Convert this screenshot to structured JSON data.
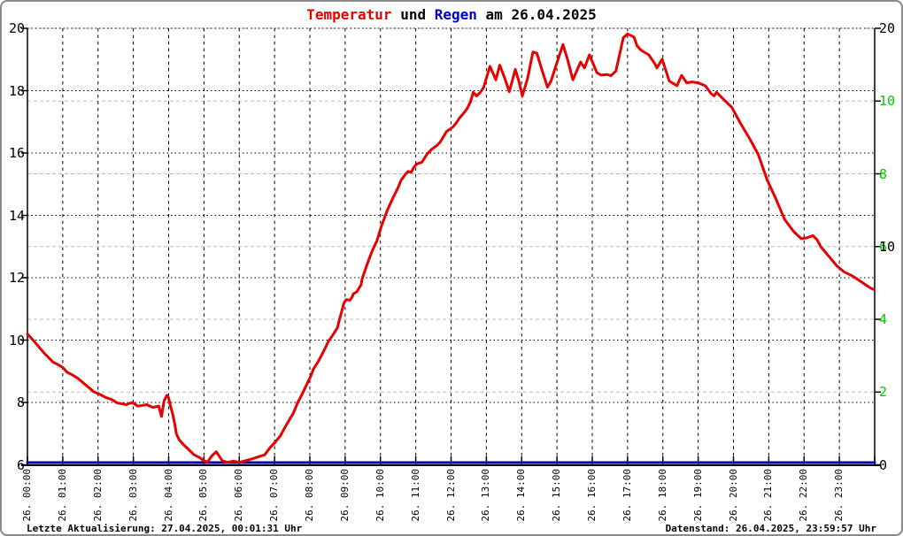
{
  "title": {
    "segments": [
      {
        "text": "Temperatur",
        "color": "#e60000"
      },
      {
        "text": " und ",
        "color": "#000000"
      },
      {
        "text": "Regen",
        "color": "#0000cc"
      },
      {
        "text": " am 26.04.2025",
        "color": "#000000"
      }
    ]
  },
  "footer": {
    "left": "Letzte Aktualisierung: 27.04.2025, 00:01:31 Uhr",
    "right": "Datenstand: 26.04.2025, 23:59:57 Uhr"
  },
  "colors": {
    "temperature_line": "#e60000",
    "rain_line": "#0000aa",
    "right_axis_green": "#00cc00",
    "grid_temp_dotted": "#000000",
    "grid_green_dashed": "#bbbbbb",
    "grid_vertical_dashed": "#000000",
    "axis": "#000000",
    "frame_border": "#8a8a8a"
  },
  "chart_data": {
    "type": "line",
    "title": "Temperatur und Regen am 26.04.2025",
    "x_axis": {
      "labels": [
        "26. 00:00",
        "26. 01:00",
        "26. 02:00",
        "26. 03:00",
        "26. 04:00",
        "26. 05:00",
        "26. 06:00",
        "26. 07:00",
        "26. 08:00",
        "26. 09:00",
        "26. 10:00",
        "26. 11:00",
        "26. 12:00",
        "26. 13:00",
        "26. 14:00",
        "26. 15:00",
        "26. 16:00",
        "26. 17:00",
        "26. 18:00",
        "26. 19:00",
        "26. 20:00",
        "26. 21:00",
        "26. 22:00",
        "26. 23:00"
      ],
      "hours": [
        0,
        1,
        2,
        3,
        4,
        5,
        6,
        7,
        8,
        9,
        10,
        11,
        12,
        13,
        14,
        15,
        16,
        17,
        18,
        19,
        20,
        21,
        22,
        23
      ],
      "range": [
        0,
        24
      ],
      "grid": "dashed"
    },
    "y_axis_left": {
      "name": "Temperatur",
      "ticks": [
        20,
        18,
        16,
        14,
        12,
        10,
        8,
        6
      ],
      "range": [
        6,
        20
      ],
      "grid": "dotted"
    },
    "y_axis_right_green": {
      "ticks": [
        10,
        8,
        6,
        4,
        2
      ],
      "range": [
        0,
        12
      ],
      "grid": "dashed-gray"
    },
    "y_axis_right_black": {
      "ticks": [
        20,
        10,
        0
      ],
      "range": [
        0,
        20
      ],
      "grid": "none"
    },
    "series": [
      {
        "name": "Temperatur",
        "axis": "left",
        "color": "#e60000",
        "points": [
          [
            0.0,
            10.2
          ],
          [
            0.22,
            9.92
          ],
          [
            0.47,
            9.59
          ],
          [
            0.72,
            9.3
          ],
          [
            0.87,
            9.21
          ],
          [
            1.0,
            9.12
          ],
          [
            1.12,
            8.97
          ],
          [
            1.28,
            8.88
          ],
          [
            1.42,
            8.78
          ],
          [
            1.62,
            8.59
          ],
          [
            1.87,
            8.35
          ],
          [
            2.05,
            8.26
          ],
          [
            2.22,
            8.16
          ],
          [
            2.38,
            8.1
          ],
          [
            2.55,
            7.98
          ],
          [
            2.8,
            7.93
          ],
          [
            2.97,
            8.0
          ],
          [
            3.13,
            7.88
          ],
          [
            3.38,
            7.93
          ],
          [
            3.55,
            7.84
          ],
          [
            3.72,
            7.88
          ],
          [
            3.8,
            7.55
          ],
          [
            3.87,
            8.05
          ],
          [
            3.95,
            8.23
          ],
          [
            4.0,
            8.15
          ],
          [
            4.03,
            7.98
          ],
          [
            4.12,
            7.6
          ],
          [
            4.17,
            7.32
          ],
          [
            4.22,
            6.99
          ],
          [
            4.3,
            6.8
          ],
          [
            4.42,
            6.65
          ],
          [
            4.55,
            6.51
          ],
          [
            4.72,
            6.32
          ],
          [
            4.88,
            6.23
          ],
          [
            5.0,
            6.13
          ],
          [
            5.1,
            6.09
          ],
          [
            5.22,
            6.28
          ],
          [
            5.35,
            6.42
          ],
          [
            5.52,
            6.13
          ],
          [
            5.67,
            6.08
          ],
          [
            5.83,
            6.12
          ],
          [
            6.0,
            6.08
          ],
          [
            6.17,
            6.13
          ],
          [
            6.33,
            6.18
          ],
          [
            6.72,
            6.32
          ],
          [
            6.88,
            6.56
          ],
          [
            7.0,
            6.7
          ],
          [
            7.17,
            6.94
          ],
          [
            7.28,
            7.17
          ],
          [
            7.4,
            7.41
          ],
          [
            7.53,
            7.65
          ],
          [
            7.65,
            7.98
          ],
          [
            7.78,
            8.26
          ],
          [
            7.9,
            8.55
          ],
          [
            8.02,
            8.83
          ],
          [
            8.1,
            9.07
          ],
          [
            8.23,
            9.3
          ],
          [
            8.32,
            9.49
          ],
          [
            8.45,
            9.78
          ],
          [
            8.53,
            9.97
          ],
          [
            8.62,
            10.11
          ],
          [
            8.7,
            10.25
          ],
          [
            8.78,
            10.39
          ],
          [
            8.82,
            10.58
          ],
          [
            8.9,
            10.91
          ],
          [
            8.97,
            11.2
          ],
          [
            9.03,
            11.3
          ],
          [
            9.13,
            11.28
          ],
          [
            9.2,
            11.38
          ],
          [
            9.23,
            11.48
          ],
          [
            9.33,
            11.55
          ],
          [
            9.45,
            11.77
          ],
          [
            9.48,
            11.96
          ],
          [
            9.65,
            12.52
          ],
          [
            9.78,
            12.9
          ],
          [
            9.9,
            13.19
          ],
          [
            10.03,
            13.66
          ],
          [
            10.2,
            14.18
          ],
          [
            10.37,
            14.6
          ],
          [
            10.5,
            14.89
          ],
          [
            10.58,
            15.12
          ],
          [
            10.7,
            15.31
          ],
          [
            10.78,
            15.41
          ],
          [
            10.87,
            15.38
          ],
          [
            10.95,
            15.55
          ],
          [
            11.03,
            15.65
          ],
          [
            11.17,
            15.7
          ],
          [
            11.33,
            15.98
          ],
          [
            11.45,
            16.12
          ],
          [
            11.62,
            16.26
          ],
          [
            11.7,
            16.36
          ],
          [
            11.87,
            16.69
          ],
          [
            12.05,
            16.83
          ],
          [
            12.15,
            16.97
          ],
          [
            12.23,
            17.11
          ],
          [
            12.38,
            17.31
          ],
          [
            12.47,
            17.45
          ],
          [
            12.55,
            17.64
          ],
          [
            12.63,
            17.95
          ],
          [
            12.72,
            17.83
          ],
          [
            12.83,
            17.95
          ],
          [
            12.92,
            18.1
          ],
          [
            13.1,
            18.78
          ],
          [
            13.27,
            18.35
          ],
          [
            13.38,
            18.82
          ],
          [
            13.52,
            18.4
          ],
          [
            13.65,
            17.97
          ],
          [
            13.82,
            18.68
          ],
          [
            13.92,
            18.3
          ],
          [
            14.02,
            17.83
          ],
          [
            14.17,
            18.4
          ],
          [
            14.32,
            19.24
          ],
          [
            14.43,
            19.2
          ],
          [
            14.57,
            18.68
          ],
          [
            14.73,
            18.11
          ],
          [
            14.83,
            18.3
          ],
          [
            15.0,
            18.9
          ],
          [
            15.17,
            19.48
          ],
          [
            15.3,
            19.0
          ],
          [
            15.45,
            18.35
          ],
          [
            15.67,
            18.92
          ],
          [
            15.78,
            18.73
          ],
          [
            15.92,
            19.15
          ],
          [
            16.13,
            18.58
          ],
          [
            16.25,
            18.5
          ],
          [
            16.42,
            18.52
          ],
          [
            16.53,
            18.48
          ],
          [
            16.67,
            18.63
          ],
          [
            16.88,
            19.7
          ],
          [
            17.0,
            19.82
          ],
          [
            17.18,
            19.72
          ],
          [
            17.27,
            19.44
          ],
          [
            17.38,
            19.3
          ],
          [
            17.6,
            19.15
          ],
          [
            17.77,
            18.87
          ],
          [
            17.83,
            18.73
          ],
          [
            17.98,
            19.01
          ],
          [
            18.18,
            18.31
          ],
          [
            18.4,
            18.16
          ],
          [
            18.53,
            18.49
          ],
          [
            18.68,
            18.25
          ],
          [
            18.83,
            18.28
          ],
          [
            19.0,
            18.25
          ],
          [
            19.2,
            18.16
          ],
          [
            19.37,
            17.9
          ],
          [
            19.45,
            17.83
          ],
          [
            19.52,
            17.95
          ],
          [
            19.73,
            17.71
          ],
          [
            19.95,
            17.47
          ],
          [
            20.2,
            16.95
          ],
          [
            20.45,
            16.48
          ],
          [
            20.7,
            15.96
          ],
          [
            20.95,
            15.15
          ],
          [
            21.2,
            14.53
          ],
          [
            21.45,
            13.87
          ],
          [
            21.7,
            13.49
          ],
          [
            21.92,
            13.25
          ],
          [
            22.08,
            13.28
          ],
          [
            22.25,
            13.35
          ],
          [
            22.37,
            13.22
          ],
          [
            22.47,
            13.0
          ],
          [
            22.72,
            12.66
          ],
          [
            22.93,
            12.38
          ],
          [
            23.13,
            12.19
          ],
          [
            23.38,
            12.05
          ],
          [
            23.63,
            11.86
          ],
          [
            23.88,
            11.67
          ],
          [
            23.98,
            11.62
          ]
        ]
      },
      {
        "name": "Regen",
        "axis": "right_green",
        "color": "#0000aa",
        "points": [
          [
            0,
            0
          ],
          [
            24,
            0
          ]
        ]
      }
    ]
  }
}
